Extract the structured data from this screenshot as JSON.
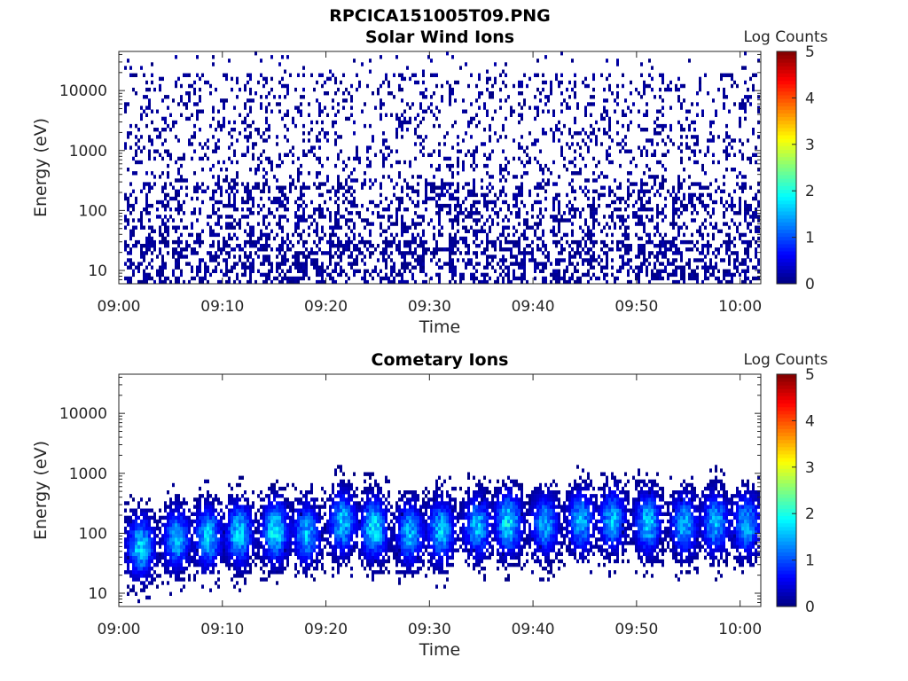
{
  "figure": {
    "filename": "RPCICA151005T09.PNG"
  },
  "chart_data": [
    {
      "type": "heatmap",
      "title": "Solar Wind Ions",
      "xlabel": "Time",
      "ylabel": "Energy (eV)",
      "yscale": "log",
      "ylim": [
        6,
        45000
      ],
      "xlim": [
        "09:00",
        "10:02"
      ],
      "x_ticks": [
        "09:00",
        "09:10",
        "09:20",
        "09:30",
        "09:40",
        "09:50",
        "10:00"
      ],
      "y_ticks": [
        "10",
        "100",
        "1000",
        "10000"
      ],
      "colorbar": {
        "label": "Log Counts",
        "ticks": [
          "0",
          "1",
          "2",
          "3",
          "4",
          "5"
        ],
        "range": [
          0,
          5
        ],
        "colormap": "jet"
      },
      "description_of_values": "sparse counts near 0-0.3 log counts scattered over 10 eV to 30000 eV, denser below 300 eV"
    },
    {
      "type": "heatmap",
      "title": "Cometary Ions",
      "xlabel": "Time",
      "ylabel": "Energy (eV)",
      "yscale": "log",
      "ylim": [
        6,
        45000
      ],
      "xlim": [
        "09:00",
        "10:02"
      ],
      "x_ticks": [
        "09:00",
        "09:10",
        "09:20",
        "09:30",
        "09:40",
        "09:50",
        "10:00"
      ],
      "y_ticks": [
        "10",
        "100",
        "1000",
        "10000"
      ],
      "colorbar": {
        "label": "Log Counts",
        "ticks": [
          "0",
          "1",
          "2",
          "3",
          "4",
          "5"
        ],
        "range": [
          0,
          5
        ],
        "colormap": "jet"
      },
      "bursts": [
        {
          "t_min": 2.0,
          "peak_ev": 60,
          "peak_log": 1.8
        },
        {
          "t_min": 5.5,
          "peak_ev": 80,
          "peak_log": 1.6
        },
        {
          "t_min": 8.5,
          "peak_ev": 90,
          "peak_log": 1.7
        },
        {
          "t_min": 11.5,
          "peak_ev": 100,
          "peak_log": 1.8
        },
        {
          "t_min": 15.0,
          "peak_ev": 110,
          "peak_log": 1.9
        },
        {
          "t_min": 18.0,
          "peak_ev": 100,
          "peak_log": 1.6
        },
        {
          "t_min": 21.5,
          "peak_ev": 150,
          "peak_log": 1.7
        },
        {
          "t_min": 24.5,
          "peak_ev": 120,
          "peak_log": 1.9
        },
        {
          "t_min": 28.0,
          "peak_ev": 100,
          "peak_log": 1.6
        },
        {
          "t_min": 31.0,
          "peak_ev": 110,
          "peak_log": 1.7
        },
        {
          "t_min": 34.5,
          "peak_ev": 130,
          "peak_log": 1.6
        },
        {
          "t_min": 37.5,
          "peak_ev": 150,
          "peak_log": 1.9
        },
        {
          "t_min": 41.0,
          "peak_ev": 140,
          "peak_log": 1.6
        },
        {
          "t_min": 44.5,
          "peak_ev": 160,
          "peak_log": 1.6
        },
        {
          "t_min": 47.5,
          "peak_ev": 170,
          "peak_log": 1.6
        },
        {
          "t_min": 51.0,
          "peak_ev": 150,
          "peak_log": 1.7
        },
        {
          "t_min": 54.5,
          "peak_ev": 140,
          "peak_log": 1.6
        },
        {
          "t_min": 57.5,
          "peak_ev": 150,
          "peak_log": 1.6
        },
        {
          "t_min": 60.5,
          "peak_ev": 140,
          "peak_log": 1.6
        }
      ]
    }
  ]
}
